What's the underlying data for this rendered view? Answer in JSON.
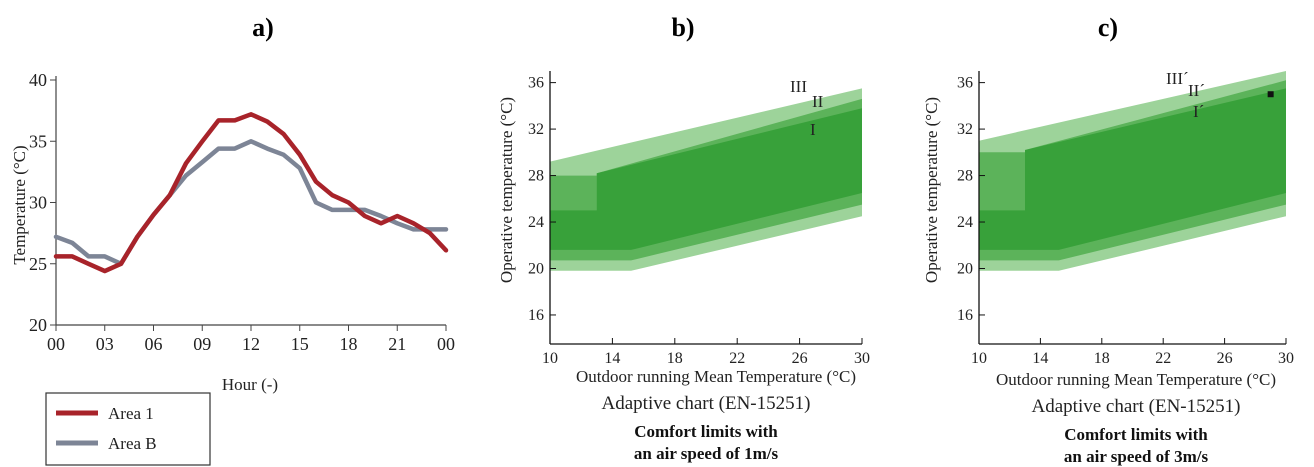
{
  "chart_data": [
    {
      "type": "line",
      "panel_label": "a)",
      "xlabel": "Hour (-)",
      "ylabel": "Temperature (°C)",
      "x_ticks": [
        "00",
        "03",
        "06",
        "09",
        "12",
        "15",
        "18",
        "21",
        "00"
      ],
      "y_ticks": [
        20,
        25,
        30,
        35,
        40
      ],
      "xlim": [
        0,
        24
      ],
      "ylim": [
        20,
        40
      ],
      "series": [
        {
          "name": "Area 1",
          "color": "#a8232a",
          "x": [
            0,
            1,
            2,
            3,
            4,
            5,
            6,
            7,
            8,
            9,
            10,
            11,
            12,
            13,
            14,
            15,
            16,
            17,
            18,
            19,
            20,
            21,
            22,
            23,
            24
          ],
          "y": [
            25.6,
            25.6,
            25.0,
            24.4,
            25.0,
            27.2,
            29.0,
            30.6,
            33.2,
            35.0,
            36.7,
            36.7,
            37.2,
            36.6,
            35.6,
            33.9,
            31.7,
            30.6,
            30.0,
            28.9,
            28.3,
            28.9,
            28.3,
            27.5,
            26.1
          ]
        },
        {
          "name": "Area B",
          "color": "#7d8596",
          "x": [
            0,
            1,
            2,
            3,
            4,
            5,
            6,
            7,
            8,
            9,
            10,
            11,
            12,
            13,
            14,
            15,
            16,
            17,
            18,
            19,
            20,
            21,
            22,
            23,
            24
          ],
          "y": [
            27.2,
            26.7,
            25.6,
            25.6,
            25.0,
            27.2,
            29.0,
            30.6,
            32.2,
            33.3,
            34.4,
            34.4,
            35.0,
            34.4,
            33.9,
            32.8,
            30.0,
            29.4,
            29.4,
            29.4,
            28.9,
            28.3,
            27.8,
            27.8,
            27.8
          ]
        }
      ]
    },
    {
      "type": "area",
      "panel_label": "b)",
      "xlabel": "Outdoor running Mean Temperature (°C)",
      "ylabel": "Operative temperature (°C)",
      "caption": "Adaptive chart (EN-15251)",
      "subtitle_lines": [
        "Comfort limits with",
        "an air speed of 1m/s"
      ],
      "x_ticks": [
        10,
        14,
        18,
        22,
        26,
        30
      ],
      "y_ticks": [
        16,
        20,
        24,
        28,
        32,
        36
      ],
      "xlim": [
        10,
        30
      ],
      "ylim": [
        13.5,
        37
      ],
      "category_labels": [
        "III",
        "II",
        "I"
      ],
      "bands": [
        {
          "upper": [
            [
              10,
              29.2
            ],
            [
              30,
              35.5
            ]
          ],
          "lower": [
            [
              10,
              19.8
            ],
            [
              15.2,
              19.8
            ],
            [
              30,
              24.5
            ]
          ],
          "color": "#9dd39a"
        },
        {
          "upper": [
            [
              10,
              28.0
            ],
            [
              13,
              28.0
            ],
            [
              13,
              28.2
            ],
            [
              30,
              34.6
            ]
          ],
          "lower": [
            [
              10,
              20.7
            ],
            [
              15.2,
              20.7
            ],
            [
              30,
              25.5
            ]
          ],
          "color": "#5cb35a"
        },
        {
          "upper": [
            [
              10,
              25.0
            ],
            [
              13,
              25.0
            ],
            [
              13,
              28.2
            ],
            [
              30,
              33.8
            ]
          ],
          "lower": [
            [
              10,
              21.6
            ],
            [
              15.2,
              21.6
            ],
            [
              30,
              26.5
            ]
          ],
          "color": "#38a13a"
        }
      ]
    },
    {
      "type": "area",
      "panel_label": "c)",
      "xlabel": "Outdoor running Mean Temperature (°C)",
      "ylabel": "Operative temperature (°C)",
      "caption": "Adaptive chart (EN-15251)",
      "subtitle_lines": [
        "Comfort limits with",
        "an air speed of 3m/s"
      ],
      "x_ticks": [
        10,
        14,
        18,
        22,
        26,
        30
      ],
      "y_ticks": [
        16,
        20,
        24,
        28,
        32,
        36
      ],
      "xlim": [
        10,
        30
      ],
      "ylim": [
        13.5,
        37
      ],
      "category_labels": [
        "III´",
        "II´",
        "I´"
      ],
      "bands": [
        {
          "upper": [
            [
              10,
              31.0
            ],
            [
              30,
              37.0
            ]
          ],
          "lower": [
            [
              10,
              19.8
            ],
            [
              15.2,
              19.8
            ],
            [
              30,
              24.5
            ]
          ],
          "color": "#9dd39a"
        },
        {
          "upper": [
            [
              10,
              30.0
            ],
            [
              13,
              30.0
            ],
            [
              13,
              30.2
            ],
            [
              30,
              36.2
            ]
          ],
          "lower": [
            [
              10,
              20.7
            ],
            [
              15.2,
              20.7
            ],
            [
              30,
              25.5
            ]
          ],
          "color": "#5cb35a"
        },
        {
          "upper": [
            [
              10,
              25.0
            ],
            [
              13,
              25.0
            ],
            [
              13,
              30.2
            ],
            [
              30,
              35.5
            ]
          ],
          "lower": [
            [
              10,
              21.6
            ],
            [
              15.2,
              21.6
            ],
            [
              30,
              26.5
            ]
          ],
          "color": "#38a13a"
        }
      ],
      "marker": {
        "x": 29,
        "y": 35
      }
    }
  ]
}
